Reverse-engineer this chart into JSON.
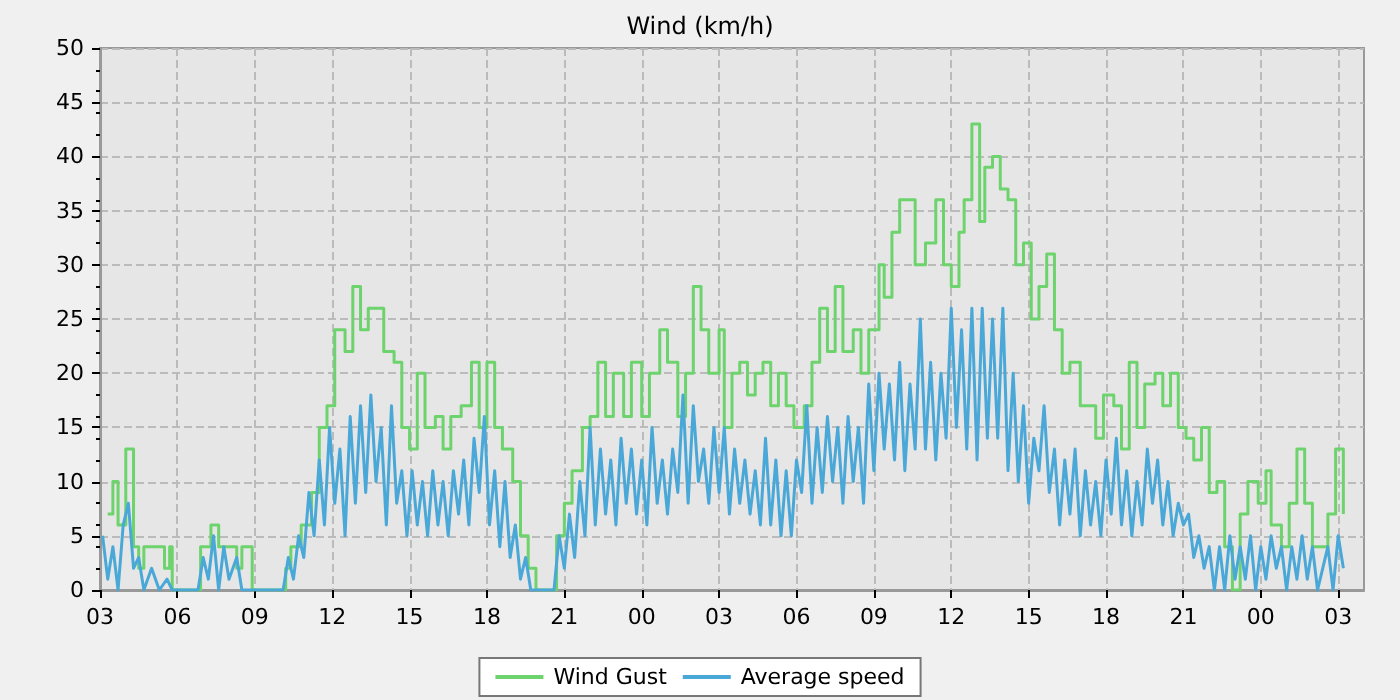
{
  "chart_data": {
    "type": "line",
    "title": "Wind (km/h)",
    "xlim": [
      3,
      52
    ],
    "ylim": [
      0,
      50
    ],
    "xticks": [
      {
        "value": 3,
        "label": "03"
      },
      {
        "value": 6,
        "label": "06"
      },
      {
        "value": 9,
        "label": "09"
      },
      {
        "value": 12,
        "label": "12"
      },
      {
        "value": 15,
        "label": "15"
      },
      {
        "value": 18,
        "label": "18"
      },
      {
        "value": 21,
        "label": "21"
      },
      {
        "value": 24,
        "label": "00"
      },
      {
        "value": 27,
        "label": "03"
      },
      {
        "value": 30,
        "label": "06"
      },
      {
        "value": 33,
        "label": "09"
      },
      {
        "value": 36,
        "label": "12"
      },
      {
        "value": 39,
        "label": "15"
      },
      {
        "value": 42,
        "label": "18"
      },
      {
        "value": 45,
        "label": "21"
      },
      {
        "value": 48,
        "label": "00"
      },
      {
        "value": 51,
        "label": "03"
      }
    ],
    "yticks": [
      0,
      5,
      10,
      15,
      20,
      25,
      30,
      35,
      40,
      45,
      50
    ],
    "grid": true,
    "legend": "bottom",
    "marker": "none",
    "series": [
      {
        "name": "Wind Gust",
        "type": "step",
        "color": "#6dd36d",
        "x": [
          3.3,
          3.5,
          3.7,
          4.0,
          4.3,
          4.5,
          4.7,
          5.2,
          5.5,
          5.7,
          5.8,
          6.9,
          7.3,
          7.6,
          8.0,
          8.3,
          8.5,
          8.9,
          10.2,
          10.4,
          10.8,
          11.2,
          11.5,
          11.8,
          12.1,
          12.5,
          12.8,
          13.1,
          13.4,
          13.8,
          14.0,
          14.4,
          14.7,
          15.0,
          15.3,
          15.6,
          16.0,
          16.3,
          16.6,
          17.0,
          17.4,
          17.7,
          18.0,
          18.3,
          18.6,
          19.0,
          19.3,
          19.6,
          19.9,
          20.7,
          21.0,
          21.3,
          21.7,
          22.0,
          22.3,
          22.6,
          22.9,
          23.3,
          23.6,
          24.0,
          24.3,
          24.7,
          25.0,
          25.4,
          25.7,
          26.0,
          26.3,
          26.6,
          27.0,
          27.2,
          27.5,
          27.8,
          28.1,
          28.4,
          28.7,
          29.0,
          29.3,
          29.6,
          29.9,
          30.3,
          30.6,
          30.9,
          31.2,
          31.5,
          31.8,
          32.2,
          32.5,
          32.8,
          33.2,
          33.4,
          33.7,
          34.0,
          34.4,
          34.6,
          35.0,
          35.4,
          35.7,
          36.0,
          36.3,
          36.5,
          36.8,
          37.1,
          37.3,
          37.6,
          37.9,
          38.2,
          38.5,
          38.8,
          39.1,
          39.4,
          39.7,
          40.0,
          40.3,
          40.6,
          41.0,
          41.3,
          41.6,
          41.9,
          42.3,
          42.6,
          42.9,
          43.2,
          43.5,
          43.9,
          44.2,
          44.5,
          44.8,
          45.1,
          45.4,
          45.7,
          46.0,
          46.3,
          46.6,
          46.9,
          47.2,
          47.5,
          47.9,
          48.2,
          48.4,
          48.8,
          49.1,
          49.4,
          49.7,
          50.0,
          50.3,
          50.6,
          50.9,
          51.2
        ],
        "values": [
          7,
          10,
          6,
          13,
          4,
          2,
          4,
          4,
          2,
          4,
          0,
          4,
          6,
          4,
          4,
          2,
          4,
          0,
          2,
          4,
          6,
          9,
          15,
          17,
          24,
          22,
          28,
          24,
          26,
          26,
          22,
          21,
          15,
          13,
          20,
          15,
          16,
          13,
          16,
          17,
          21,
          15,
          21,
          15,
          13,
          10,
          5,
          2,
          0,
          5,
          8,
          11,
          15,
          16,
          21,
          16,
          20,
          16,
          21,
          16,
          20,
          24,
          21,
          16,
          20,
          28,
          24,
          20,
          24,
          15,
          20,
          21,
          18,
          20,
          21,
          17,
          20,
          17,
          15,
          17,
          21,
          26,
          22,
          28,
          22,
          24,
          20,
          24,
          30,
          27,
          33,
          36,
          36,
          30,
          32,
          36,
          30,
          28,
          33,
          36,
          43,
          34,
          39,
          40,
          37,
          36,
          30,
          32,
          25,
          28,
          31,
          24,
          20,
          21,
          17,
          17,
          14,
          18,
          17,
          13,
          21,
          15,
          19,
          20,
          17,
          20,
          15,
          14,
          12,
          15,
          9,
          10,
          4,
          0,
          7,
          10,
          8,
          11,
          6,
          4,
          8,
          13,
          8,
          4,
          4,
          7,
          13,
          7
        ]
      },
      {
        "name": "Average speed",
        "color": "#4aa8d8",
        "x": [
          3.1,
          3.3,
          3.5,
          3.7,
          3.9,
          4.1,
          4.3,
          4.5,
          4.7,
          5.0,
          5.3,
          5.6,
          5.8,
          6.8,
          7.0,
          7.2,
          7.4,
          7.6,
          7.8,
          8.0,
          8.3,
          8.5,
          10.1,
          10.3,
          10.5,
          10.7,
          10.9,
          11.1,
          11.3,
          11.5,
          11.7,
          11.9,
          12.1,
          12.3,
          12.5,
          12.7,
          12.9,
          13.1,
          13.3,
          13.5,
          13.7,
          13.9,
          14.1,
          14.3,
          14.5,
          14.7,
          14.9,
          15.1,
          15.3,
          15.5,
          15.7,
          15.9,
          16.1,
          16.3,
          16.5,
          16.7,
          16.9,
          17.1,
          17.3,
          17.5,
          17.7,
          17.9,
          18.1,
          18.3,
          18.5,
          18.7,
          18.9,
          19.1,
          19.3,
          19.5,
          19.7,
          20.6,
          20.8,
          21.0,
          21.2,
          21.4,
          21.6,
          21.8,
          22.0,
          22.2,
          22.4,
          22.6,
          22.8,
          23.0,
          23.2,
          23.4,
          23.6,
          23.8,
          24.0,
          24.2,
          24.4,
          24.6,
          24.8,
          25.0,
          25.2,
          25.4,
          25.6,
          25.8,
          26.0,
          26.2,
          26.4,
          26.6,
          26.8,
          27.0,
          27.2,
          27.4,
          27.6,
          27.8,
          28.0,
          28.2,
          28.4,
          28.6,
          28.8,
          29.0,
          29.2,
          29.4,
          29.6,
          29.8,
          30.0,
          30.2,
          30.4,
          30.6,
          30.8,
          31.0,
          31.2,
          31.4,
          31.6,
          31.8,
          32.0,
          32.2,
          32.4,
          32.6,
          32.8,
          33.0,
          33.2,
          33.4,
          33.6,
          33.8,
          34.0,
          34.2,
          34.4,
          34.6,
          34.8,
          35.0,
          35.2,
          35.4,
          35.6,
          35.8,
          36.0,
          36.2,
          36.4,
          36.6,
          36.8,
          37.0,
          37.2,
          37.4,
          37.6,
          37.8,
          38.0,
          38.2,
          38.4,
          38.6,
          38.8,
          39.0,
          39.2,
          39.4,
          39.6,
          39.8,
          40.0,
          40.2,
          40.4,
          40.6,
          40.8,
          41.0,
          41.2,
          41.4,
          41.6,
          41.8,
          42.0,
          42.2,
          42.4,
          42.6,
          42.8,
          43.0,
          43.2,
          43.4,
          43.6,
          43.8,
          44.0,
          44.2,
          44.4,
          44.6,
          44.8,
          45.0,
          45.2,
          45.4,
          45.6,
          45.8,
          46.0,
          46.2,
          46.4,
          46.6,
          46.8,
          47.0,
          47.2,
          47.4,
          47.6,
          47.8,
          48.0,
          48.2,
          48.4,
          48.6,
          48.8,
          49.0,
          49.2,
          49.4,
          49.6,
          49.8,
          50.0,
          50.2,
          50.4,
          50.6,
          50.8,
          51.0,
          51.2
        ],
        "values": [
          5,
          1,
          4,
          0,
          6,
          8,
          2,
          3,
          0,
          2,
          0,
          1,
          0,
          0,
          3,
          1,
          5,
          0,
          4,
          1,
          3,
          0,
          0,
          3,
          1,
          5,
          3,
          9,
          5,
          12,
          6,
          15,
          8,
          13,
          5,
          16,
          8,
          17,
          9,
          18,
          10,
          15,
          6,
          17,
          8,
          11,
          5,
          11,
          6,
          10,
          5,
          11,
          6,
          10,
          5,
          11,
          7,
          12,
          6,
          14,
          9,
          16,
          6,
          11,
          4,
          10,
          3,
          6,
          1,
          3,
          0,
          0,
          5,
          2,
          7,
          3,
          10,
          5,
          15,
          6,
          13,
          7,
          12,
          6,
          14,
          8,
          13,
          7,
          12,
          6,
          15,
          8,
          12,
          7,
          13,
          9,
          18,
          8,
          17,
          10,
          13,
          8,
          15,
          9,
          15,
          7,
          13,
          8,
          12,
          7,
          11,
          6,
          14,
          6,
          12,
          5,
          11,
          5,
          12,
          9,
          17,
          8,
          15,
          9,
          16,
          10,
          15,
          8,
          16,
          10,
          15,
          8,
          19,
          11,
          20,
          13,
          19,
          12,
          21,
          11,
          19,
          13,
          25,
          13,
          21,
          12,
          20,
          14,
          26,
          15,
          24,
          13,
          26,
          12,
          26,
          14,
          25,
          14,
          26,
          11,
          20,
          10,
          17,
          8,
          14,
          11,
          17,
          9,
          13,
          6,
          12,
          7,
          13,
          5,
          11,
          6,
          10,
          5,
          12,
          7,
          14,
          6,
          11,
          5,
          10,
          6,
          13,
          8,
          12,
          6,
          10,
          5,
          8,
          6,
          7,
          3,
          5,
          2,
          4,
          0,
          4,
          0,
          5,
          1,
          4,
          1,
          5,
          0,
          4,
          1,
          5,
          2,
          4,
          0,
          4,
          1,
          5,
          1,
          4,
          0,
          2,
          4,
          0,
          5,
          2
        ]
      }
    ]
  }
}
